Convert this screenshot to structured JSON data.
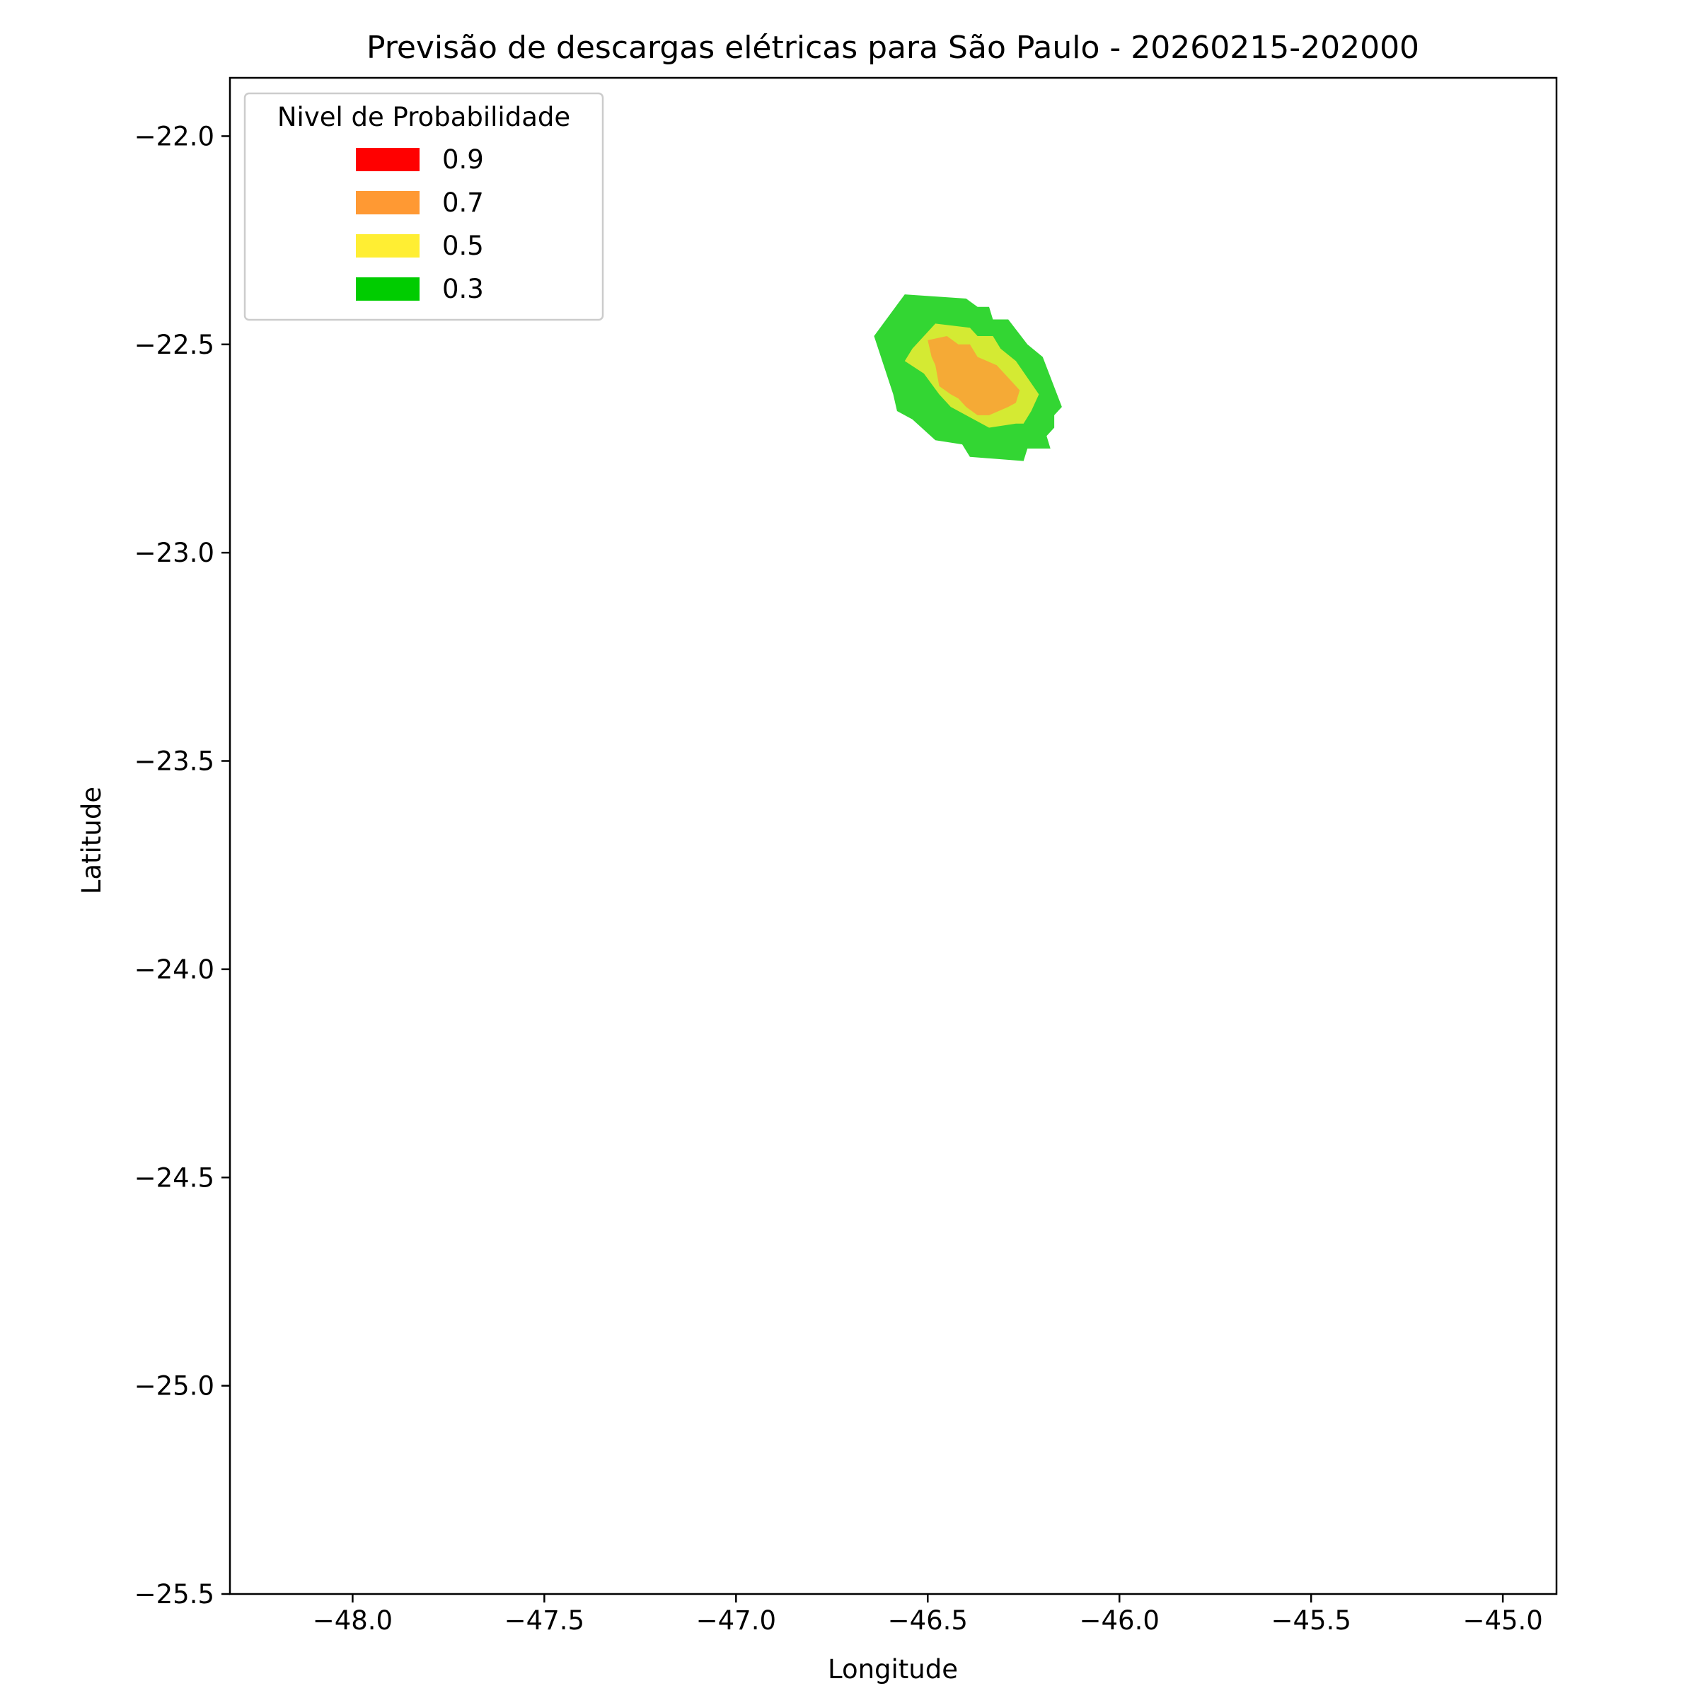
{
  "chart_data": {
    "type": "contour",
    "title": "Previsão de descargas elétricas para São Paulo - 20260215-202000",
    "xlabel": "Longitude",
    "ylabel": "Latitude",
    "xlim": [
      -48.32,
      -44.86
    ],
    "ylim": [
      -25.5,
      -21.86
    ],
    "x_ticks": [
      -48.0,
      -47.5,
      -47.0,
      -46.5,
      -46.0,
      -45.5,
      -45.0
    ],
    "x_tick_labels": [
      "−48.0",
      "−47.5",
      "−47.0",
      "−46.5",
      "−46.0",
      "−45.5",
      "−45.0"
    ],
    "y_ticks": [
      -22.0,
      -22.5,
      -23.0,
      -23.5,
      -24.0,
      -24.5,
      -25.0,
      -25.5
    ],
    "y_tick_labels": [
      "−22.0",
      "−22.5",
      "−23.0",
      "−23.5",
      "−24.0",
      "−24.5",
      "−25.0",
      "−25.5"
    ],
    "legend": {
      "title": "Nivel de Probabilidade",
      "placement": "upper-left",
      "entries": [
        {
          "label": "0.9",
          "color": "#ff0000"
        },
        {
          "label": "0.7",
          "color": "#ff9933"
        },
        {
          "label": "0.5",
          "color": "#ffee33"
        },
        {
          "label": "0.3",
          "color": "#00cc00"
        }
      ]
    },
    "regions": [
      {
        "level": "0.3",
        "color": "#33d633",
        "polygon": [
          [
            -46.56,
            -22.38
          ],
          [
            -46.4,
            -22.39
          ],
          [
            -46.37,
            -22.41
          ],
          [
            -46.34,
            -22.41
          ],
          [
            -46.33,
            -22.44
          ],
          [
            -46.29,
            -22.44
          ],
          [
            -46.24,
            -22.5
          ],
          [
            -46.2,
            -22.53
          ],
          [
            -46.15,
            -22.65
          ],
          [
            -46.17,
            -22.67
          ],
          [
            -46.17,
            -22.7
          ],
          [
            -46.19,
            -22.72
          ],
          [
            -46.18,
            -22.75
          ],
          [
            -46.24,
            -22.75
          ],
          [
            -46.25,
            -22.78
          ],
          [
            -46.39,
            -22.77
          ],
          [
            -46.41,
            -22.74
          ],
          [
            -46.48,
            -22.73
          ],
          [
            -46.54,
            -22.68
          ],
          [
            -46.58,
            -22.66
          ],
          [
            -46.59,
            -22.62
          ],
          [
            -46.64,
            -22.48
          ]
        ]
      },
      {
        "level": "0.5",
        "color": "#d4ea33",
        "polygon": [
          [
            -46.48,
            -22.45
          ],
          [
            -46.39,
            -22.46
          ],
          [
            -46.37,
            -22.48
          ],
          [
            -46.33,
            -22.48
          ],
          [
            -46.31,
            -22.51
          ],
          [
            -46.27,
            -22.54
          ],
          [
            -46.24,
            -22.58
          ],
          [
            -46.21,
            -22.62
          ],
          [
            -46.23,
            -22.66
          ],
          [
            -46.25,
            -22.69
          ],
          [
            -46.27,
            -22.69
          ],
          [
            -46.34,
            -22.7
          ],
          [
            -46.44,
            -22.65
          ],
          [
            -46.47,
            -22.62
          ],
          [
            -46.51,
            -22.57
          ],
          [
            -46.56,
            -22.54
          ],
          [
            -46.54,
            -22.51
          ]
        ]
      },
      {
        "level": "0.7",
        "color": "#f5aa36",
        "polygon": [
          [
            -46.5,
            -22.49
          ],
          [
            -46.45,
            -22.48
          ],
          [
            -46.42,
            -22.5
          ],
          [
            -46.39,
            -22.5
          ],
          [
            -46.37,
            -22.53
          ],
          [
            -46.32,
            -22.55
          ],
          [
            -46.29,
            -22.58
          ],
          [
            -46.26,
            -22.61
          ],
          [
            -46.27,
            -22.64
          ],
          [
            -46.29,
            -22.65
          ],
          [
            -46.34,
            -22.67
          ],
          [
            -46.37,
            -22.67
          ],
          [
            -46.4,
            -22.65
          ],
          [
            -46.42,
            -22.63
          ],
          [
            -46.44,
            -22.62
          ],
          [
            -46.47,
            -22.6
          ],
          [
            -46.48,
            -22.55
          ],
          [
            -46.49,
            -22.53
          ]
        ]
      }
    ]
  }
}
